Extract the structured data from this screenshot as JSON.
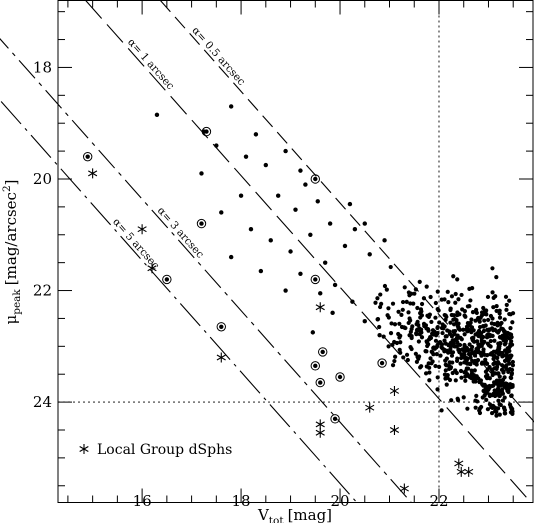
{
  "chart_data": {
    "type": "scatter",
    "xlabel_main": "V",
    "xlabel_sub": "tot",
    "xlabel_unit": "[mag]",
    "ylabel_main": "μ",
    "ylabel_sub": "peak",
    "ylabel_unit": "[mag/arcsec",
    "ylabel_sup": "2",
    "ylabel_close": "]",
    "xlim": [
      14.3,
      23.9
    ],
    "ylim": [
      25.8,
      16.8
    ],
    "y_inverted": true,
    "xticks": [
      16,
      18,
      20,
      22
    ],
    "yticks": [
      18,
      20,
      22,
      24
    ],
    "x_minor_step": 0.5,
    "y_minor_step": 0.5,
    "reference_lines": [
      {
        "label": "α= 0.5 arcsec",
        "offset": 0.43,
        "dash": "15,7"
      },
      {
        "label": "α= 1 arcsec",
        "offset": 1.94,
        "dash": "24,8"
      },
      {
        "label": "α= 3 arcsec",
        "offset": 4.36,
        "dash": "24,6,4,6"
      },
      {
        "label": "α= 5 arcsec",
        "offset": 5.46,
        "dash": "30,6,3,6"
      }
    ],
    "vertical_line": {
      "x": 22.0,
      "dash": "2,3"
    },
    "horizontal_line": {
      "y": 24.0,
      "dash": "2,3"
    },
    "cluster": {
      "x_min": 20.6,
      "x_max": 23.5,
      "y_center": 23.1,
      "y_spread": 0.55,
      "count": 700
    },
    "sparse_points": [
      {
        "x": 16.3,
        "y": 18.85
      },
      {
        "x": 17.25,
        "y": 19.15
      },
      {
        "x": 17.8,
        "y": 18.7
      },
      {
        "x": 17.5,
        "y": 19.4
      },
      {
        "x": 18.1,
        "y": 19.6
      },
      {
        "x": 18.3,
        "y": 19.2
      },
      {
        "x": 18.5,
        "y": 19.75
      },
      {
        "x": 18.9,
        "y": 19.5
      },
      {
        "x": 19.2,
        "y": 19.85
      },
      {
        "x": 18.75,
        "y": 20.3
      },
      {
        "x": 19.3,
        "y": 20.1
      },
      {
        "x": 19.1,
        "y": 20.55
      },
      {
        "x": 19.55,
        "y": 20.4
      },
      {
        "x": 19.8,
        "y": 20.8
      },
      {
        "x": 18.2,
        "y": 20.9
      },
      {
        "x": 18.6,
        "y": 21.1
      },
      {
        "x": 19.0,
        "y": 21.3
      },
      {
        "x": 19.4,
        "y": 21.0
      },
      {
        "x": 17.8,
        "y": 21.4
      },
      {
        "x": 18.4,
        "y": 21.65
      },
      {
        "x": 19.2,
        "y": 21.7
      },
      {
        "x": 19.7,
        "y": 21.5
      },
      {
        "x": 20.1,
        "y": 21.2
      },
      {
        "x": 20.3,
        "y": 20.9
      },
      {
        "x": 20.6,
        "y": 21.35
      },
      {
        "x": 20.9,
        "y": 21.1
      },
      {
        "x": 17.6,
        "y": 20.6
      },
      {
        "x": 18.0,
        "y": 20.3
      },
      {
        "x": 20.2,
        "y": 20.45
      },
      {
        "x": 20.5,
        "y": 20.8
      },
      {
        "x": 19.6,
        "y": 22.05
      },
      {
        "x": 19.85,
        "y": 22.4
      },
      {
        "x": 20.25,
        "y": 22.2
      },
      {
        "x": 20.5,
        "y": 22.55
      },
      {
        "x": 17.2,
        "y": 19.9
      },
      {
        "x": 19.9,
        "y": 21.9
      },
      {
        "x": 18.9,
        "y": 22.0
      },
      {
        "x": 19.45,
        "y": 22.75
      },
      {
        "x": 20.8,
        "y": 22.8
      }
    ],
    "circled_points": [
      {
        "x": 14.9,
        "y": 19.6
      },
      {
        "x": 17.3,
        "y": 19.15
      },
      {
        "x": 19.5,
        "y": 20.0
      },
      {
        "x": 17.2,
        "y": 20.8
      },
      {
        "x": 16.5,
        "y": 21.8
      },
      {
        "x": 19.5,
        "y": 21.8
      },
      {
        "x": 17.6,
        "y": 22.65
      },
      {
        "x": 19.5,
        "y": 23.35
      },
      {
        "x": 19.65,
        "y": 23.1
      },
      {
        "x": 19.6,
        "y": 23.65
      },
      {
        "x": 20.0,
        "y": 23.55
      },
      {
        "x": 20.85,
        "y": 23.3
      },
      {
        "x": 19.9,
        "y": 24.3
      }
    ],
    "dsph_points": [
      {
        "x": 15.0,
        "y": 19.9
      },
      {
        "x": 16.0,
        "y": 20.9
      },
      {
        "x": 16.2,
        "y": 21.6
      },
      {
        "x": 17.6,
        "y": 23.2
      },
      {
        "x": 19.6,
        "y": 22.3
      },
      {
        "x": 19.6,
        "y": 24.4
      },
      {
        "x": 19.6,
        "y": 24.55
      },
      {
        "x": 20.6,
        "y": 24.1
      },
      {
        "x": 21.1,
        "y": 23.8
      },
      {
        "x": 21.1,
        "y": 24.5
      },
      {
        "x": 21.3,
        "y": 25.55
      },
      {
        "x": 22.4,
        "y": 25.1
      },
      {
        "x": 22.45,
        "y": 25.25
      },
      {
        "x": 22.6,
        "y": 25.25
      }
    ],
    "legend": {
      "label": "Local Group dSphs",
      "position": "bottom-left"
    }
  }
}
